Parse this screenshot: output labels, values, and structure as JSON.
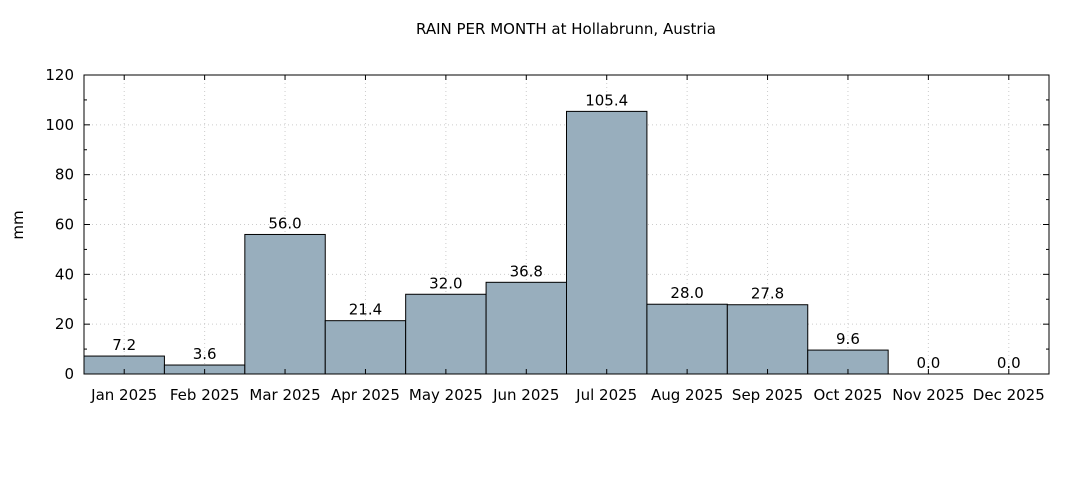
{
  "chart_data": {
    "type": "bar",
    "title": "RAIN PER MONTH at Hollabrunn, Austria",
    "xlabel": "",
    "ylabel": "mm",
    "ylim": [
      0,
      120
    ],
    "yticks": [
      0,
      20,
      40,
      60,
      80,
      100,
      120
    ],
    "grid": true,
    "categories": [
      "Jan 2025",
      "Feb 2025",
      "Mar 2025",
      "Apr 2025",
      "May 2025",
      "Jun 2025",
      "Jul 2025",
      "Aug 2025",
      "Sep 2025",
      "Oct 2025",
      "Nov 2025",
      "Dec 2025"
    ],
    "values": [
      7.2,
      3.6,
      56.0,
      21.4,
      32.0,
      36.8,
      105.4,
      28.0,
      27.8,
      9.6,
      0.0,
      0.0
    ],
    "data_labels": [
      "7.2",
      "3.6",
      "56.0",
      "21.4",
      "32.0",
      "36.8",
      "105.4",
      "28.0",
      "27.8",
      "9.6",
      "0.0",
      "0.0"
    ],
    "bar_color": "#98aebd",
    "edge_color": "#000000"
  }
}
